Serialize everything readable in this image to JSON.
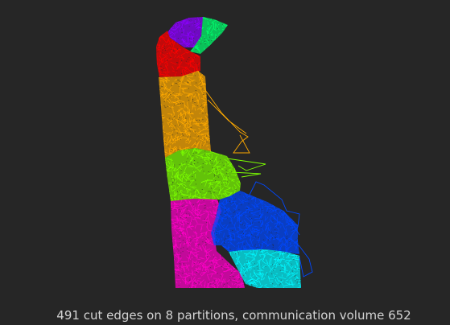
{
  "caption": "491 cut edges on 8 partitions, communication volume 652",
  "graph": {
    "partition_count": 8,
    "cut_edges": 491,
    "communication_volume": 652,
    "partitions": [
      {
        "id": "violet",
        "color": "#8c00ff"
      },
      {
        "id": "green",
        "color": "#00ff6e"
      },
      {
        "id": "red",
        "color": "#ff0000"
      },
      {
        "id": "orange",
        "color": "#ffaa00"
      },
      {
        "id": "lime",
        "color": "#7cff00"
      },
      {
        "id": "magenta",
        "color": "#ff00c8"
      },
      {
        "id": "blue",
        "color": "#0048ff"
      },
      {
        "id": "cyan",
        "color": "#00f7ff"
      }
    ]
  }
}
